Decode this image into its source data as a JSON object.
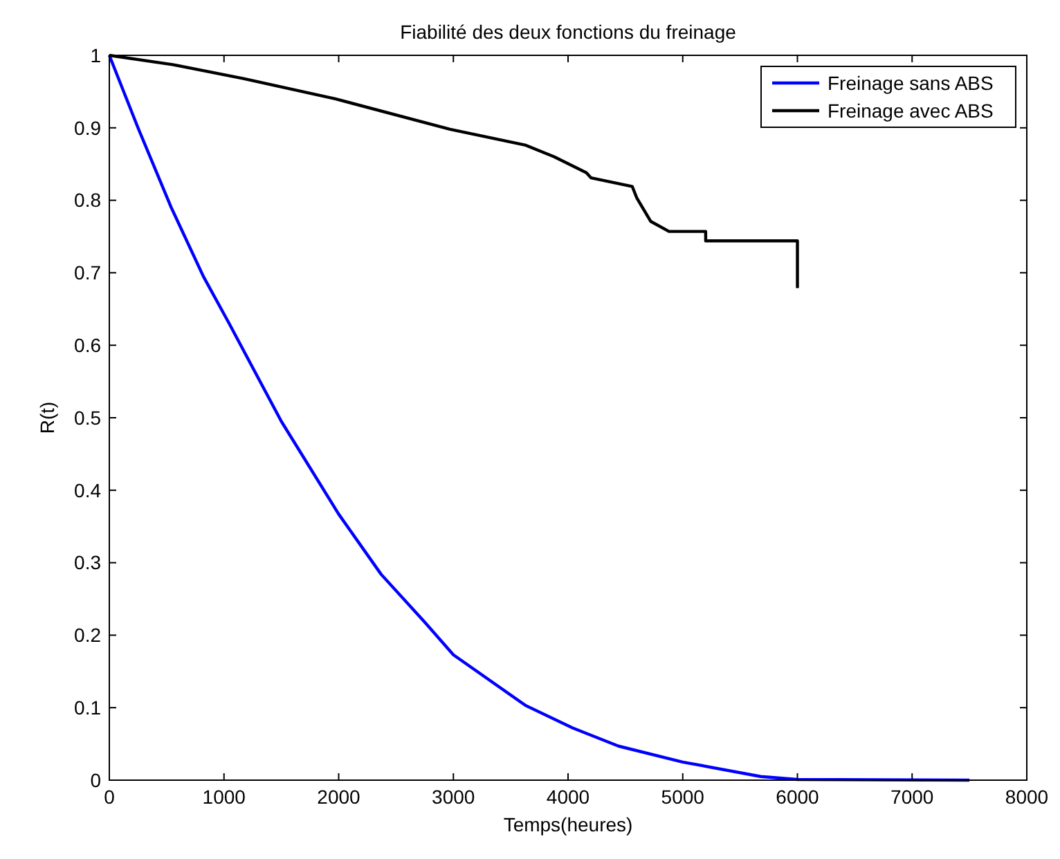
{
  "chart_data": {
    "type": "line",
    "title": "Fiabilité des deux fonctions du freinage",
    "xlabel": "Temps(heures)",
    "ylabel": "R(t)",
    "xlim": [
      0,
      8000
    ],
    "ylim": [
      0,
      1
    ],
    "xticks": [
      0,
      1000,
      2000,
      3000,
      4000,
      5000,
      6000,
      7000,
      8000
    ],
    "yticks": [
      0,
      0.1,
      0.2,
      0.3,
      0.4,
      0.5,
      0.6,
      0.7,
      0.8,
      0.9,
      1
    ],
    "grid": false,
    "legend": "top right",
    "marker": "none",
    "line_style": "solid",
    "series": [
      {
        "name": "Freinage sans ABS",
        "color": "#0000ff",
        "x": [
          0,
          250,
          540,
          820,
          1045,
          1500,
          2000,
          2370,
          2750,
          3000,
          3630,
          4040,
          4440,
          5000,
          5680,
          6000,
          7500
        ],
        "values": [
          1,
          0.9,
          0.79,
          0.695,
          0.63,
          0.495,
          0.367,
          0.284,
          0.218,
          0.173,
          0.103,
          0.072,
          0.047,
          0.025,
          0.005,
          0.001,
          0
        ]
      },
      {
        "name": "Freinage avec ABS",
        "color": "#000000",
        "x": [
          0,
          560,
          1170,
          1970,
          2970,
          3630,
          3880,
          4160,
          4200,
          4560,
          4600,
          4720,
          4880,
          5200,
          5200,
          6000,
          6000
        ],
        "values": [
          1,
          0.987,
          0.968,
          0.94,
          0.898,
          0.876,
          0.86,
          0.838,
          0.831,
          0.819,
          0.803,
          0.771,
          0.757,
          0.757,
          0.744,
          0.744,
          0.679
        ]
      }
    ]
  }
}
